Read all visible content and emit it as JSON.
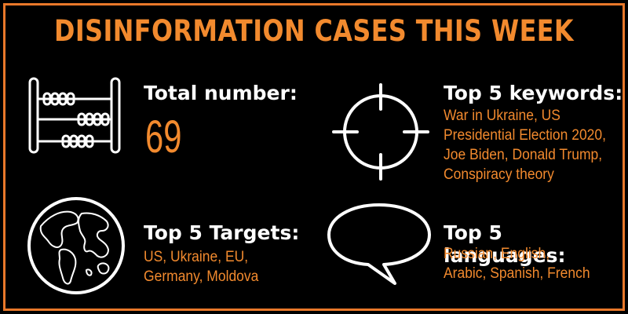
{
  "title": "DISINFORMATION CASES THIS WEEK",
  "total": {
    "heading": "Total number:",
    "value": "69",
    "icon": "abacus-icon"
  },
  "keywords": {
    "heading": "Top 5 keywords:",
    "lines": [
      "War in Ukraine, US",
      "Presidential Election 2020,",
      "Joe Biden, Donald Trump,",
      "Conspiracy theory"
    ],
    "icon": "crosshair-icon"
  },
  "targets": {
    "heading": "Top 5 Targets:",
    "lines": [
      "US, Ukraine, EU,",
      "Germany, Moldova"
    ],
    "icon": "globe-icon"
  },
  "languages": {
    "heading": "Top 5 languages:",
    "lines": [
      "Russian, English,",
      "Arabic, Spanish, French"
    ],
    "icon": "speech-bubble-icon"
  },
  "colors": {
    "accent": "#f28a2e",
    "border": "#e8782a",
    "background": "#000000",
    "text": "#ffffff"
  }
}
